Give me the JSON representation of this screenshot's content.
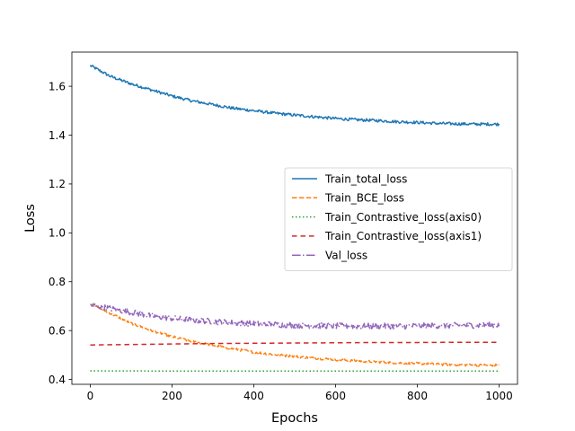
{
  "chart_data": {
    "type": "line",
    "title": "",
    "xlabel": "Epochs",
    "ylabel": "Loss",
    "xlim": [
      -45,
      1045
    ],
    "ylim": [
      0.38,
      1.74
    ],
    "xticks": [
      0,
      200,
      400,
      600,
      800,
      1000
    ],
    "yticks": [
      0.4,
      0.6,
      0.8,
      1.0,
      1.2,
      1.4,
      1.6
    ],
    "ytick_labels": [
      "0.4",
      "0.6",
      "0.8",
      "1.0",
      "1.2",
      "1.4",
      "1.6"
    ],
    "grid": false,
    "legend_position": "center-right",
    "series": [
      {
        "name": "Train_total_loss",
        "color": "#1f77b4",
        "style": "solid",
        "noise": 0.006,
        "x": [
          0,
          50,
          100,
          150,
          200,
          250,
          300,
          350,
          400,
          450,
          500,
          550,
          600,
          650,
          700,
          750,
          800,
          850,
          900,
          950,
          1000
        ],
        "y": [
          1.685,
          1.64,
          1.61,
          1.585,
          1.56,
          1.54,
          1.525,
          1.51,
          1.5,
          1.49,
          1.482,
          1.475,
          1.468,
          1.463,
          1.46,
          1.455,
          1.452,
          1.448,
          1.446,
          1.445,
          1.445
        ]
      },
      {
        "name": "Train_BCE_loss",
        "color": "#ff7f0e",
        "style": "dashed",
        "noise": 0.005,
        "x": [
          0,
          50,
          100,
          150,
          200,
          250,
          300,
          350,
          400,
          450,
          500,
          550,
          600,
          650,
          700,
          750,
          800,
          850,
          900,
          950,
          1000
        ],
        "y": [
          0.71,
          0.67,
          0.63,
          0.6,
          0.575,
          0.555,
          0.54,
          0.525,
          0.512,
          0.502,
          0.494,
          0.487,
          0.481,
          0.476,
          0.472,
          0.468,
          0.465,
          0.462,
          0.46,
          0.458,
          0.458
        ]
      },
      {
        "name": "Train_Contrastive_loss(axis0)",
        "color": "#2ca02c",
        "style": "dotted",
        "noise": 0.0,
        "x": [
          0,
          250,
          500,
          750,
          1000
        ],
        "y": [
          0.435,
          0.434,
          0.434,
          0.434,
          0.434
        ]
      },
      {
        "name": "Train_Contrastive_loss(axis1)",
        "color": "#d62728",
        "style": "dashed-long",
        "noise": 0.0,
        "x": [
          0,
          100,
          200,
          300,
          400,
          500,
          600,
          700,
          800,
          900,
          1000
        ],
        "y": [
          0.541,
          0.543,
          0.545,
          0.547,
          0.548,
          0.549,
          0.55,
          0.551,
          0.551,
          0.552,
          0.552
        ]
      },
      {
        "name": "Val_loss",
        "color": "#9467bd",
        "style": "dashdot",
        "noise": 0.012,
        "x": [
          0,
          50,
          100,
          150,
          200,
          250,
          300,
          350,
          400,
          450,
          500,
          550,
          600,
          650,
          700,
          750,
          800,
          850,
          900,
          950,
          1000
        ],
        "y": [
          0.705,
          0.69,
          0.675,
          0.66,
          0.65,
          0.643,
          0.637,
          0.632,
          0.628,
          0.625,
          0.622,
          0.62,
          0.619,
          0.618,
          0.618,
          0.618,
          0.619,
          0.62,
          0.621,
          0.622,
          0.623
        ]
      }
    ]
  }
}
